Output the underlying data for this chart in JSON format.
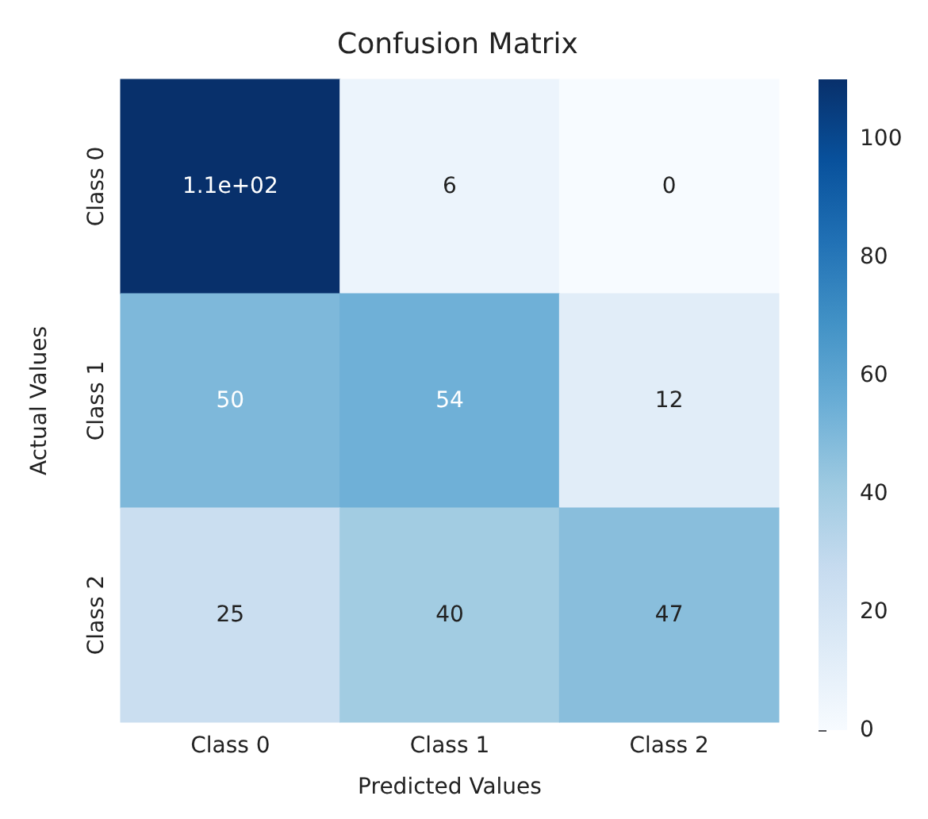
{
  "chart_data": {
    "type": "heatmap",
    "title": "Confusion Matrix",
    "xlabel": "Predicted Values",
    "ylabel": "Actual Values",
    "categories": [
      "Class 0",
      "Class 1",
      "Class 2"
    ],
    "y_categories": [
      "Class 0",
      "Class 1",
      "Class 2"
    ],
    "cells": [
      [
        110,
        6,
        0
      ],
      [
        50,
        54,
        12
      ],
      [
        25,
        40,
        47
      ]
    ],
    "cell_labels": [
      [
        "1.1e+02",
        "6",
        "0"
      ],
      [
        "50",
        "54",
        "12"
      ],
      [
        "25",
        "40",
        "47"
      ]
    ],
    "clim": [
      0,
      110
    ],
    "cticks": [
      0,
      20,
      40,
      60,
      80,
      100
    ]
  }
}
